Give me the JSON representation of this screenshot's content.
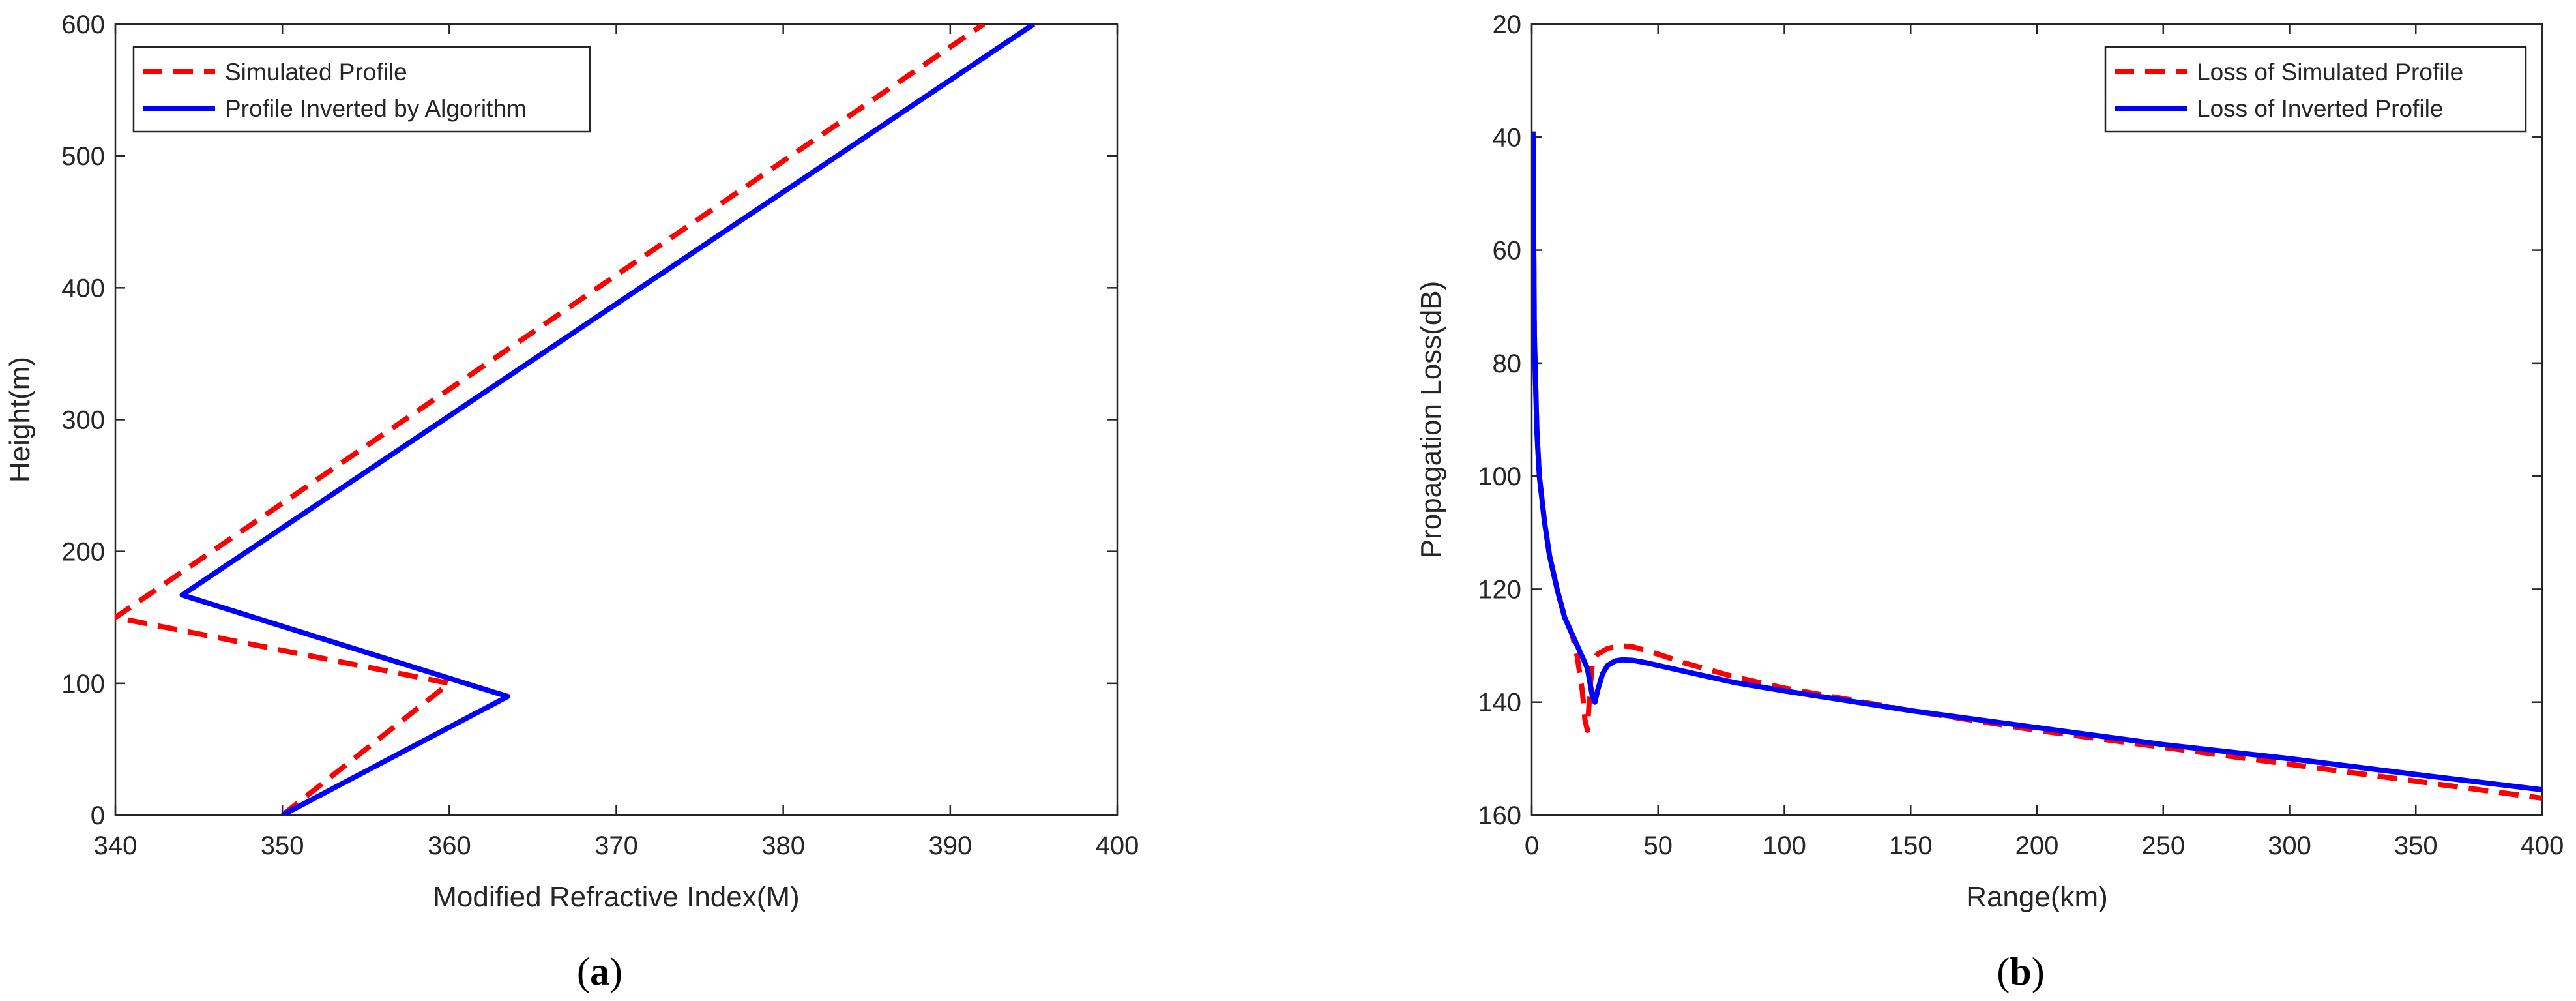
{
  "chart_data": [
    {
      "type": "line",
      "panel_label": "a",
      "title": "",
      "xlabel": "Modified Refractive Index(M)",
      "ylabel": "Height(m)",
      "xlim": [
        340,
        400
      ],
      "ylim": [
        0,
        600
      ],
      "xticks": [
        340,
        350,
        360,
        370,
        380,
        390,
        400
      ],
      "yticks": [
        0,
        100,
        200,
        300,
        400,
        500,
        600
      ],
      "legend_position": "top-left",
      "series": [
        {
          "name": "Simulated Profile",
          "color": "#ff0000",
          "style": "dashed",
          "x": [
            350,
            360,
            340,
            392
          ],
          "y": [
            0,
            100,
            150,
            600
          ]
        },
        {
          "name": "Profile Inverted by Algorithm",
          "color": "#0000ff",
          "style": "solid",
          "x": [
            350,
            363.5,
            344,
            395
          ],
          "y": [
            0,
            90,
            167,
            600
          ]
        }
      ]
    },
    {
      "type": "line",
      "panel_label": "b",
      "title": "",
      "xlabel": "Range(km)",
      "ylabel": "Propagation Loss(dB)",
      "xlim": [
        0,
        400
      ],
      "ylim": [
        20,
        160
      ],
      "y_reversed": true,
      "xticks": [
        0,
        50,
        100,
        150,
        200,
        250,
        300,
        350,
        400
      ],
      "yticks": [
        20,
        40,
        60,
        80,
        100,
        120,
        140,
        160
      ],
      "legend_position": "top-right",
      "series": [
        {
          "name": "Loss of Simulated Profile",
          "color": "#ff0000",
          "style": "dashed",
          "x": [
            0.5,
            1,
            2,
            3,
            5,
            7,
            10,
            13,
            16,
            18,
            20,
            21,
            22,
            23,
            24,
            26,
            30,
            35,
            40,
            50,
            60,
            80,
            100,
            150,
            200,
            250,
            300,
            350,
            400
          ],
          "y": [
            40,
            75,
            92,
            100,
            108,
            114,
            120,
            125,
            128,
            132,
            138,
            143,
            145,
            138,
            133,
            131.5,
            130.5,
            130,
            130.2,
            131.5,
            133,
            135.5,
            137.5,
            141.5,
            145,
            148,
            151,
            154,
            157
          ]
        },
        {
          "name": "Loss of Inverted Profile",
          "color": "#0000ff",
          "style": "solid",
          "x": [
            0.5,
            1,
            2,
            3,
            5,
            7,
            10,
            13,
            16,
            18,
            20,
            22,
            24,
            25,
            26,
            28,
            30,
            33,
            36,
            40,
            45,
            50,
            60,
            80,
            100,
            150,
            200,
            250,
            300,
            350,
            400
          ],
          "y": [
            39,
            75,
            92,
            100,
            108,
            114,
            120,
            125,
            128,
            130,
            132,
            134,
            139,
            140,
            138,
            135,
            133.5,
            132.7,
            132.5,
            132.6,
            133,
            133.5,
            134.5,
            136.5,
            138,
            141.5,
            144.5,
            147.5,
            150,
            152.8,
            155.5
          ]
        }
      ]
    }
  ]
}
